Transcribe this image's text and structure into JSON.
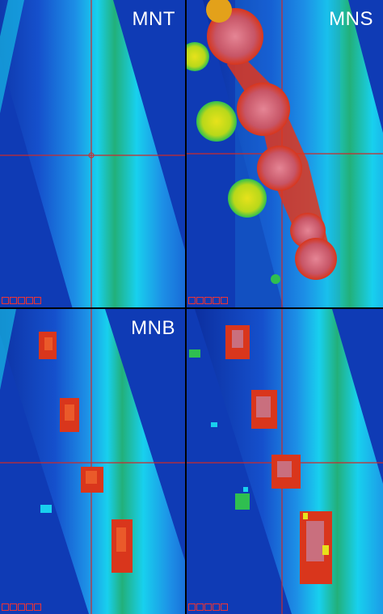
{
  "panels": [
    {
      "label": "MNT",
      "id": "top-left"
    },
    {
      "label": "MNS",
      "id": "top-right"
    },
    {
      "label": "MNB",
      "id": "bottom-left"
    },
    {
      "label": "",
      "id": "bottom-right"
    }
  ],
  "colors": {
    "background": "#0f3bb5",
    "band_outer": "#1d8fe6",
    "band_mid": "#18d0ee",
    "band_core": "#1fa35c",
    "crosshair": "#cc2b2b",
    "blob_pink": "#d9707f",
    "blob_red": "#e0361c",
    "blob_yellow": "#e7e21b"
  }
}
